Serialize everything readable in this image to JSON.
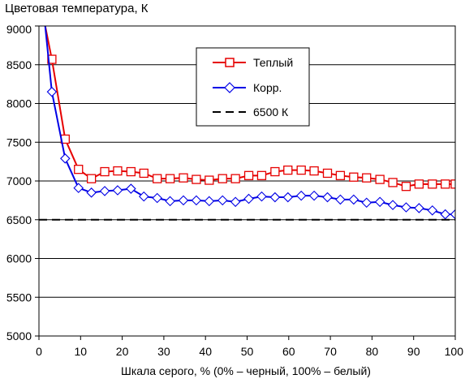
{
  "chart_data": {
    "type": "line",
    "title": "Цветовая температура, К",
    "xlabel": "Шкала серого, % (0% – черный, 100% – белый)",
    "ylabel": "",
    "xlim": [
      0,
      100
    ],
    "ylim": [
      5000,
      9000
    ],
    "xticks": [
      "0",
      "10",
      "20",
      "30",
      "40",
      "50",
      "60",
      "70",
      "80",
      "90",
      "100"
    ],
    "yticks": [
      "5000",
      "5500",
      "6000",
      "6500",
      "7000",
      "7500",
      "8000",
      "8500",
      "9000"
    ],
    "grid": "horizontal",
    "legend": {
      "position": "top-right",
      "entries": [
        "Теплый",
        "Корр.",
        "6500 К"
      ]
    },
    "series": [
      {
        "name": "Теплый",
        "color": "#e60000",
        "marker": "square",
        "x": [
          3.1,
          6.3,
          9.5,
          12.6,
          15.8,
          18.9,
          22.1,
          25.2,
          28.4,
          31.5,
          34.7,
          37.8,
          40.9,
          44.1,
          47.2,
          50.4,
          53.5,
          56.7,
          59.8,
          63,
          66.1,
          69.3,
          72.4,
          75.6,
          78.7,
          81.9,
          85,
          88.2,
          91.3,
          94.5,
          97.6,
          100
        ],
        "y": [
          8570,
          7540,
          7150,
          7030,
          7120,
          7130,
          7120,
          7100,
          7030,
          7030,
          7040,
          7020,
          7010,
          7030,
          7030,
          7070,
          7070,
          7120,
          7140,
          7140,
          7130,
          7100,
          7070,
          7050,
          7040,
          7020,
          6980,
          6930,
          6960,
          6960,
          6960,
          6960
        ],
        "lead": {
          "x": [
            1.5,
            3.1
          ],
          "y": [
            9000,
            8570
          ]
        }
      },
      {
        "name": "Корр.",
        "color": "#0000e6",
        "marker": "diamond",
        "x": [
          3.1,
          6.3,
          9.5,
          12.6,
          15.8,
          18.9,
          22.1,
          25.2,
          28.4,
          31.5,
          34.7,
          37.8,
          40.9,
          44.1,
          47.2,
          50.4,
          53.5,
          56.7,
          59.8,
          63,
          66.1,
          69.3,
          72.4,
          75.6,
          78.7,
          81.9,
          85,
          88.2,
          91.3,
          94.5,
          97.6,
          100
        ],
        "y": [
          8150,
          7290,
          6910,
          6850,
          6870,
          6880,
          6900,
          6800,
          6780,
          6740,
          6750,
          6750,
          6740,
          6750,
          6730,
          6770,
          6800,
          6790,
          6790,
          6810,
          6810,
          6790,
          6760,
          6760,
          6720,
          6730,
          6690,
          6660,
          6650,
          6620,
          6570,
          6570
        ],
        "lead": {
          "x": [
            1.5,
            3.1
          ],
          "y": [
            9000,
            8150
          ]
        }
      },
      {
        "name": "6500 К",
        "color": "#000000",
        "style": "dashed",
        "x": [
          0,
          100
        ],
        "y": [
          6500,
          6500
        ]
      }
    ]
  }
}
